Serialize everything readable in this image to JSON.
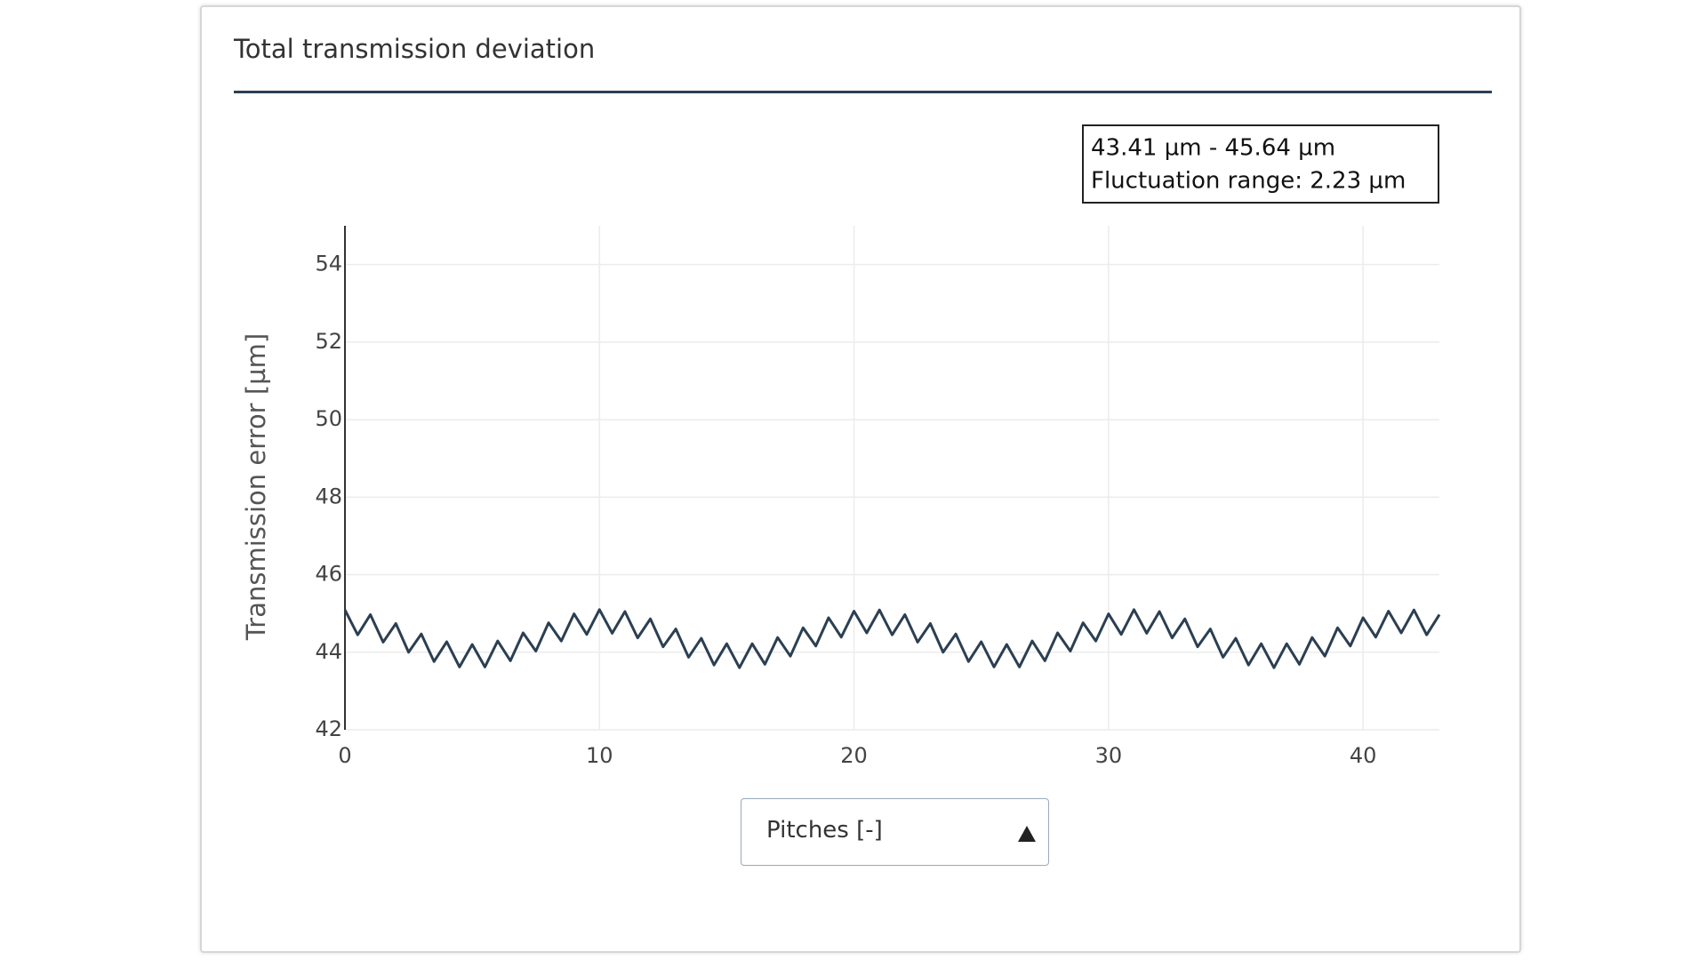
{
  "panel_title": "Total transmission deviation",
  "chart_data": {
    "type": "line",
    "annotation": [
      "43.41 µm - 45.64 µm",
      "Fluctuation range: 2.23 µm"
    ],
    "y_label": "Transmission error [µm]",
    "x_label": "Pitches [-]",
    "x": [
      0,
      0.5,
      1,
      1.5,
      2,
      2.5,
      3,
      3.5,
      4,
      4.5,
      5,
      5.5,
      6,
      6.5,
      7,
      7.5,
      8,
      8.5,
      9,
      9.5,
      10,
      10.5,
      11,
      11.5,
      12,
      12.5,
      13,
      13.5,
      14,
      14.5,
      15,
      15.5,
      16,
      16.5,
      17,
      17.5,
      18,
      18.5,
      19,
      19.5,
      20,
      20.5,
      21,
      21.5,
      22,
      22.5,
      23,
      23.5,
      24,
      24.5,
      25,
      25.5,
      26,
      26.5,
      27,
      27.5,
      28,
      28.5,
      29,
      29.5,
      30,
      30.5,
      31,
      31.5,
      32,
      32.5,
      33,
      33.5,
      34,
      34.5,
      35,
      35.5,
      36,
      36.5,
      37,
      37.5,
      38,
      38.5,
      39,
      39.5,
      40,
      40.5,
      41,
      41.5,
      42,
      42.5,
      43
    ],
    "series": [
      {
        "color": "#2b3f52",
        "values": [
          45.09,
          44.45,
          44.97,
          44.26,
          44.74,
          44.0,
          44.47,
          43.76,
          44.27,
          43.62,
          44.2,
          43.62,
          44.29,
          43.78,
          44.5,
          44.03,
          44.76,
          44.29,
          44.99,
          44.46,
          45.1,
          44.49,
          45.05,
          44.37,
          44.86,
          44.14,
          44.6,
          43.87,
          44.36,
          43.67,
          44.22,
          43.6,
          44.22,
          43.69,
          44.38,
          43.9,
          44.63,
          44.16,
          44.89,
          44.39,
          45.06,
          44.5,
          45.09,
          44.45,
          44.97,
          44.26,
          44.74,
          44.0,
          44.47,
          43.76,
          44.27,
          43.62,
          44.2,
          43.62,
          44.29,
          43.78,
          44.5,
          44.03,
          44.76,
          44.29,
          44.99,
          44.46,
          45.1,
          44.49,
          45.05,
          44.37,
          44.86,
          44.14,
          44.6,
          43.87,
          44.36,
          43.67,
          44.22,
          43.6,
          44.22,
          43.69,
          44.38,
          43.9,
          44.63,
          44.16,
          44.89,
          44.39,
          45.06,
          44.5,
          45.09,
          44.45,
          44.97
        ]
      }
    ],
    "xlim": [
      0,
      43
    ],
    "xticks": [
      0,
      10,
      20,
      30,
      40
    ],
    "ylim": [
      42,
      55
    ],
    "yticks": [
      42,
      44,
      46,
      48,
      50,
      52,
      54
    ],
    "grid": true
  }
}
